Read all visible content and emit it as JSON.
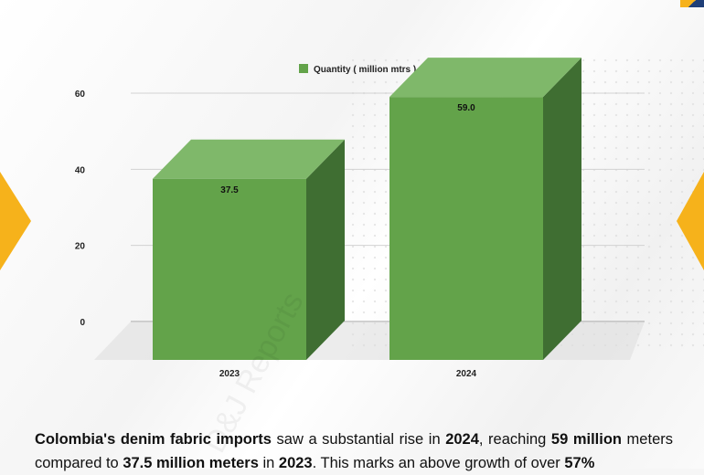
{
  "chart_data": {
    "type": "bar",
    "style": "3d",
    "categories": [
      "2023",
      "2024"
    ],
    "series": [
      {
        "name": "Quantity ( million mtrs )",
        "values": [
          37.5,
          59.0
        ],
        "value_labels": [
          "37.5",
          "59.0"
        ]
      }
    ],
    "yticks": [
      "0",
      "20",
      "40",
      "60"
    ],
    "ylim": [
      0,
      60
    ],
    "grid": true,
    "legend_position": "top-center",
    "colors": {
      "front": "#63a34a",
      "top": "#7fb86a",
      "side": "#3f6e32",
      "floor": "#dcdcdc"
    }
  },
  "watermark": "D&J Reports",
  "caption": {
    "segments": [
      {
        "text": "Colombia's denim fabric imports",
        "bold": true
      },
      {
        "text": " saw a substantial rise in ",
        "bold": false
      },
      {
        "text": "2024",
        "bold": true
      },
      {
        "text": ", reaching ",
        "bold": false
      },
      {
        "text": "59 million",
        "bold": true
      },
      {
        "text": " meters compared to ",
        "bold": false
      },
      {
        "text": "37.5 million meters",
        "bold": true
      },
      {
        "text": " in ",
        "bold": false
      },
      {
        "text": "2023",
        "bold": true
      },
      {
        "text": ". This marks an above growth of over ",
        "bold": false
      },
      {
        "text": "57%",
        "bold": true
      }
    ]
  }
}
